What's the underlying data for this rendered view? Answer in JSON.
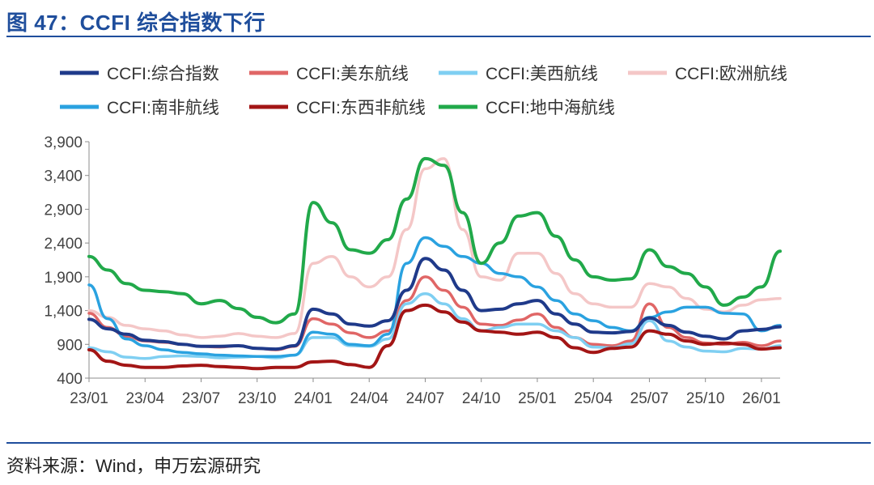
{
  "header": {
    "title": "图 47：CCFI 综合指数下行"
  },
  "footer": {
    "source": "资料来源：Wind，申万宏源研究"
  },
  "chart_data": {
    "type": "line",
    "title": "CCFI 综合指数下行",
    "xlabel": "",
    "ylabel": "",
    "ylim": [
      400,
      3900
    ],
    "yticks": [
      400,
      900,
      1400,
      1900,
      2400,
      2900,
      3400,
      3900
    ],
    "ytick_labels": [
      "400",
      "900",
      "1,400",
      "1,900",
      "2,400",
      "2,900",
      "3,400",
      "3,900"
    ],
    "x_start": "2023-01",
    "x_ticks": [
      "23/01",
      "23/04",
      "23/07",
      "23/10",
      "24/01",
      "24/04",
      "24/07",
      "24/10",
      "25/01",
      "25/04",
      "25/07",
      "25/10",
      "26/01"
    ],
    "x": [
      "23/01",
      "23/02",
      "23/03",
      "23/04",
      "23/05",
      "23/06",
      "23/07",
      "23/08",
      "23/09",
      "23/10",
      "23/11",
      "23/12",
      "24/01",
      "24/02",
      "24/03",
      "24/04",
      "24/05",
      "24/06",
      "24/07",
      "24/08",
      "24/09",
      "24/10",
      "24/11",
      "24/12",
      "25/01",
      "25/02",
      "25/03",
      "25/04",
      "25/05",
      "25/06",
      "25/07",
      "25/08",
      "25/09",
      "25/10",
      "25/11",
      "25/12",
      "26/01",
      "26/02"
    ],
    "legend": [
      "CCFI:综合指数",
      "CCFI:美东航线",
      "CCFI:美西航线",
      "CCFI:欧洲航线",
      "CCFI:南非航线",
      "CCFI:东西非航线",
      "CCFI:地中海航线"
    ],
    "series": [
      {
        "name": "CCFI:综合指数",
        "color": "#1f3a8a",
        "values": [
          1270,
          1130,
          1050,
          960,
          940,
          900,
          870,
          870,
          880,
          840,
          830,
          880,
          1420,
          1350,
          1200,
          1170,
          1250,
          1700,
          2170,
          2000,
          1700,
          1400,
          1420,
          1500,
          1550,
          1350,
          1200,
          1080,
          1070,
          1090,
          1290,
          1180,
          1080,
          1020,
          980,
          1100,
          1120,
          1160
        ]
      },
      {
        "name": "CCFI:美东航线",
        "color": "#e06666",
        "values": [
          1360,
          1150,
          1020,
          950,
          930,
          900,
          870,
          860,
          880,
          840,
          820,
          870,
          1280,
          1200,
          1070,
          1000,
          1100,
          1550,
          1900,
          1700,
          1450,
          1200,
          1180,
          1260,
          1350,
          1150,
          1000,
          900,
          880,
          950,
          1500,
          1150,
          1000,
          920,
          900,
          930,
          880,
          950
        ]
      },
      {
        "name": "CCFI:美西航线",
        "color": "#7fcff2",
        "values": [
          850,
          790,
          710,
          690,
          720,
          730,
          720,
          700,
          710,
          720,
          700,
          740,
          1000,
          1000,
          880,
          870,
          980,
          1500,
          1650,
          1500,
          1280,
          1100,
          1150,
          1200,
          1200,
          1100,
          1000,
          860,
          850,
          910,
          1250,
          950,
          860,
          800,
          790,
          840,
          830,
          880
        ]
      },
      {
        "name": "CCFI:欧洲航线",
        "color": "#f4c7c7",
        "values": [
          1400,
          1300,
          1180,
          1130,
          1100,
          1040,
          1000,
          1020,
          1060,
          1020,
          1000,
          1060,
          2100,
          2200,
          1900,
          1750,
          1900,
          2600,
          3500,
          3650,
          2600,
          1900,
          1850,
          2250,
          2250,
          1950,
          1650,
          1500,
          1450,
          1450,
          1800,
          1750,
          1580,
          1420,
          1380,
          1480,
          1560,
          1580
        ]
      },
      {
        "name": "CCFI:南非航线",
        "color": "#2aa2e0",
        "values": [
          1780,
          1280,
          980,
          880,
          820,
          780,
          760,
          740,
          730,
          720,
          720,
          740,
          1080,
          1050,
          900,
          880,
          1050,
          2100,
          2480,
          2350,
          2200,
          2100,
          1950,
          1900,
          1750,
          1550,
          1350,
          1250,
          1150,
          1100,
          1300,
          1380,
          1450,
          1450,
          1360,
          1350,
          1100,
          1180
        ]
      },
      {
        "name": "CCFI:东西非航线",
        "color": "#a31515",
        "values": [
          820,
          650,
          590,
          560,
          560,
          580,
          590,
          570,
          560,
          540,
          560,
          560,
          640,
          650,
          600,
          560,
          880,
          1400,
          1480,
          1380,
          1230,
          1100,
          1080,
          1050,
          1080,
          1000,
          850,
          780,
          840,
          860,
          1100,
          1050,
          950,
          900,
          920,
          900,
          830,
          850
        ]
      },
      {
        "name": "CCFI:地中海航线",
        "color": "#21a94a",
        "values": [
          2200,
          2000,
          1800,
          1700,
          1680,
          1650,
          1500,
          1550,
          1430,
          1300,
          1220,
          1350,
          3000,
          2700,
          2300,
          2250,
          2450,
          3050,
          3650,
          3550,
          2850,
          2100,
          2400,
          2800,
          2850,
          2500,
          2150,
          1900,
          1850,
          1870,
          2300,
          2050,
          1950,
          1750,
          1480,
          1600,
          1750,
          2280
        ]
      }
    ]
  }
}
